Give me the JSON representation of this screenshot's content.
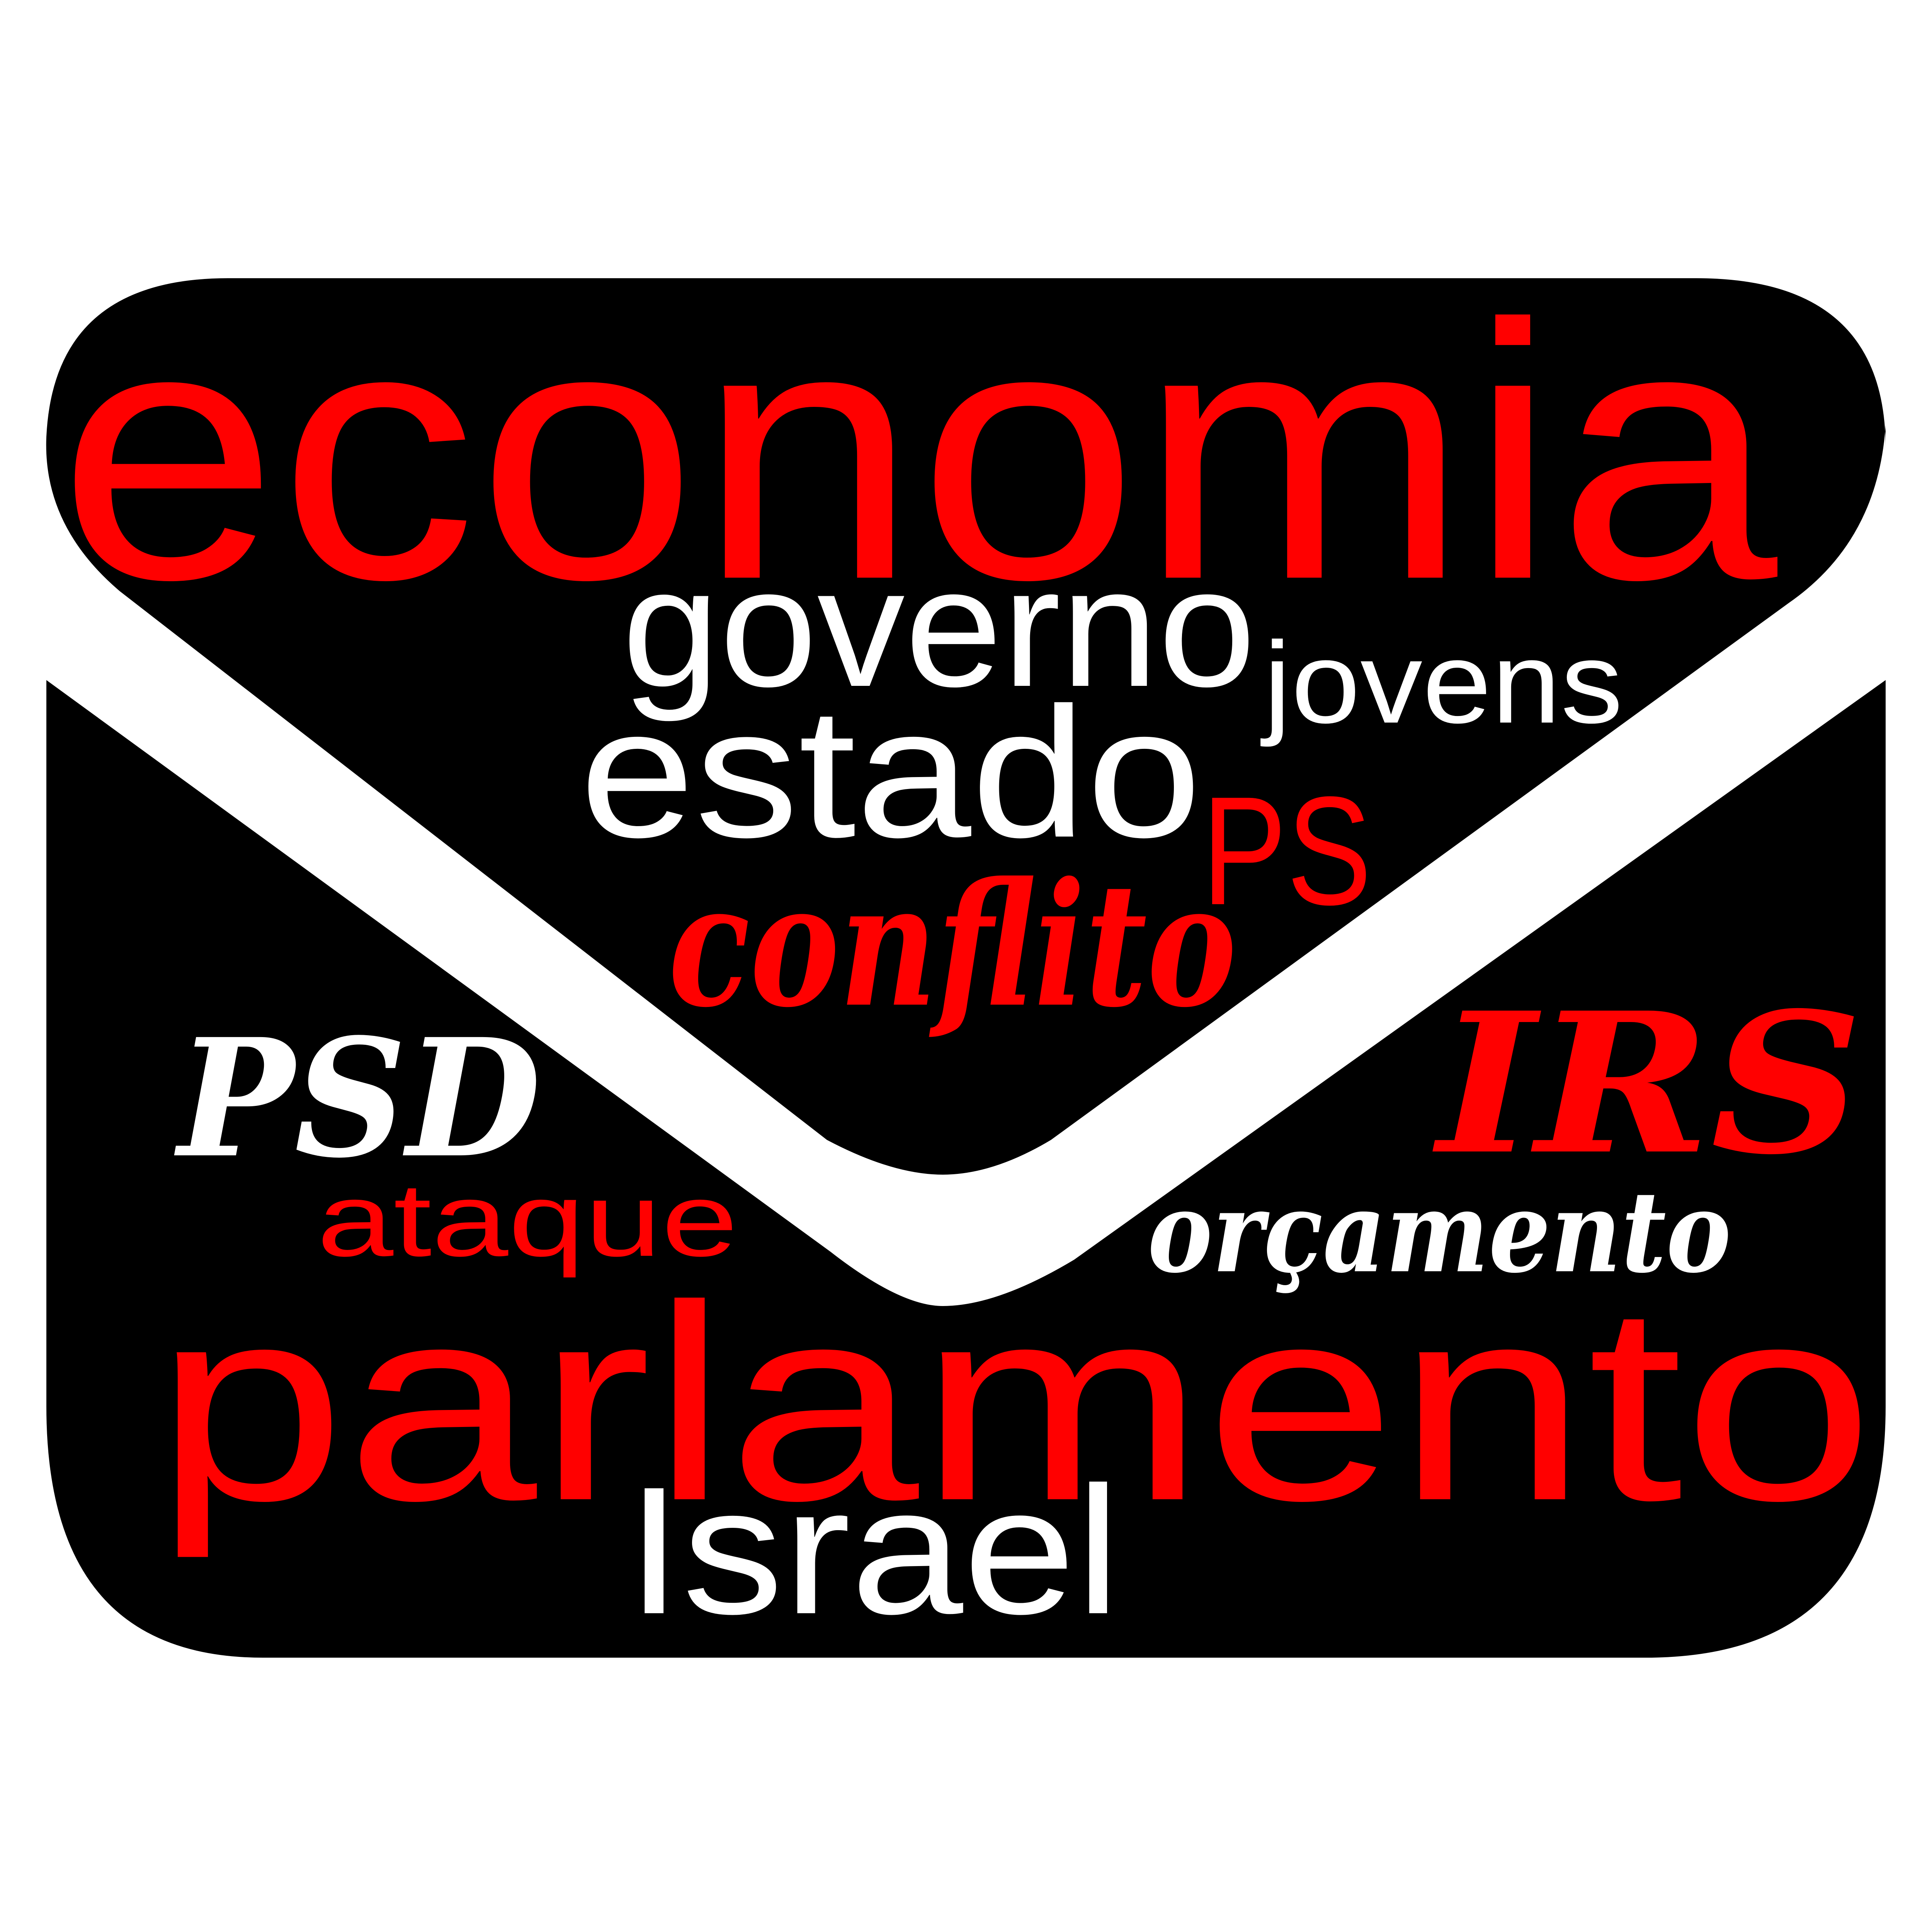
{
  "colors": {
    "background": "#ffffff",
    "envelope": "#000000",
    "flap_band": "#ffffff",
    "red": "#ff0000",
    "white": "#ffffff"
  },
  "icon": "envelope-icon",
  "words": {
    "economia": "economia",
    "governo": "governo",
    "jovens": "jovens",
    "estado": "estado",
    "ps": "PS",
    "conflito": "conflito",
    "psd": "PSD",
    "irs": "IRS",
    "ataque": "ataque",
    "orcamento": "orçamento",
    "parlamento": "parlamento",
    "israel": "Israel"
  }
}
